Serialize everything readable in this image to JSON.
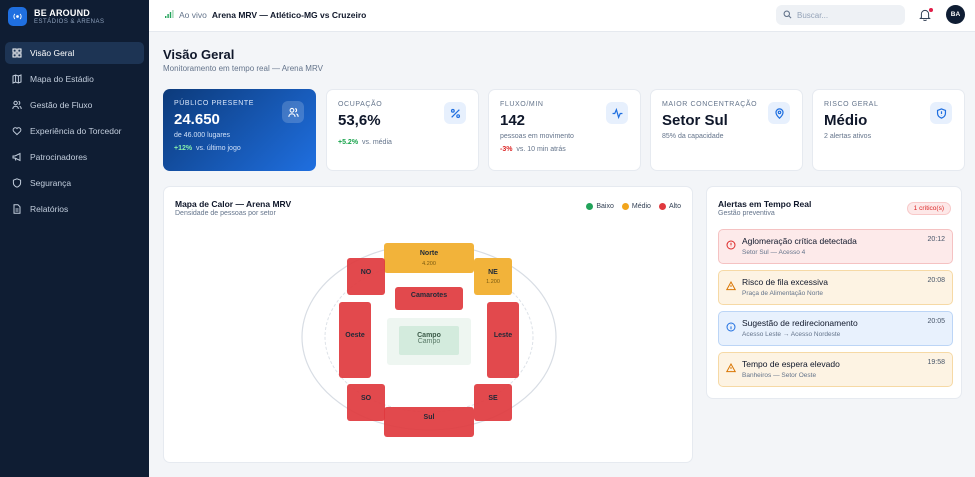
{
  "brand": {
    "name": "BE AROUND",
    "sub": "ESTÁDIOS & ARENAS"
  },
  "sidebar": {
    "items": [
      {
        "label": "Visão Geral",
        "icon": "grid-icon",
        "active": true
      },
      {
        "label": "Mapa do Estádio",
        "icon": "map-icon",
        "active": false
      },
      {
        "label": "Gestão de Fluxo",
        "icon": "users-icon",
        "active": false
      },
      {
        "label": "Experiência do Torcedor",
        "icon": "heart-icon",
        "active": false
      },
      {
        "label": "Patrocinadores",
        "icon": "megaphone-icon",
        "active": false
      },
      {
        "label": "Segurança",
        "icon": "shield-icon",
        "active": false
      },
      {
        "label": "Relatórios",
        "icon": "document-icon",
        "active": false
      }
    ]
  },
  "header": {
    "live_label": "Ao vivo",
    "match": "Arena MRV — Atlético-MG vs Cruzeiro",
    "search_placeholder": "Buscar...",
    "avatar_initials": "BA"
  },
  "page": {
    "title": "Visão Geral",
    "subtitle": "Monitoramento em tempo real — Arena MRV"
  },
  "kpis": [
    {
      "label": "Público presente",
      "value": "24.650",
      "desc": "de 46.000 lugares",
      "trend": "+12%",
      "trend_dir": "up",
      "trend_note": "vs. último jogo",
      "icon": "users-icon"
    },
    {
      "label": "Ocupação",
      "value": "53,6%",
      "desc": "",
      "trend": "+5.2%",
      "trend_dir": "up",
      "trend_note": "vs. média",
      "icon": "percent-icon"
    },
    {
      "label": "Fluxo/min",
      "value": "142",
      "desc": "pessoas em movimento",
      "trend": "-3%",
      "trend_dir": "down",
      "trend_note": "vs. 10 min atrás",
      "icon": "activity-icon"
    },
    {
      "label": "Maior concentração",
      "value": "Setor Sul",
      "desc": "85% da capacidade",
      "trend": "",
      "trend_dir": "",
      "trend_note": "",
      "icon": "map-pin-icon"
    },
    {
      "label": "Risco geral",
      "value": "Médio",
      "desc": "2 alertas ativos",
      "trend": "",
      "trend_dir": "",
      "trend_note": "",
      "icon": "shield-icon"
    }
  ],
  "heatmap": {
    "title": "Mapa de Calor — Arena MRV",
    "subtitle": "Densidade de pessoas por setor",
    "legend": [
      {
        "label": "Baixo",
        "color": "#22a35a"
      },
      {
        "label": "Médio",
        "color": "#f2a51c"
      },
      {
        "label": "Alto",
        "color": "#e0393e"
      }
    ],
    "field_label": "Campo",
    "field_sub": "Campo",
    "sectors": [
      {
        "name": "Norte",
        "value": "4.200",
        "level": "medio"
      },
      {
        "name": "NO",
        "value": "",
        "level": "alto"
      },
      {
        "name": "NE",
        "value": "1.200",
        "level": "medio"
      },
      {
        "name": "Camarotes",
        "value": "",
        "level": "alto"
      },
      {
        "name": "Oeste",
        "value": "",
        "level": "alto"
      },
      {
        "name": "Leste",
        "value": "",
        "level": "alto"
      },
      {
        "name": "SO",
        "value": "",
        "level": "alto"
      },
      {
        "name": "SE",
        "value": "",
        "level": "alto"
      },
      {
        "name": "Sul",
        "value": "",
        "level": "alto"
      }
    ]
  },
  "alerts": {
    "title": "Alertas em Tempo Real",
    "subtitle": "Gestão preventiva",
    "badge": "1 crítico(s)",
    "items": [
      {
        "title": "Aglomeração crítica detectada",
        "sub": "Setor Sul — Acesso 4",
        "time": "20:12",
        "kind": "critical"
      },
      {
        "title": "Risco de fila excessiva",
        "sub": "Praça de Alimentação Norte",
        "time": "20:08",
        "kind": "warning"
      },
      {
        "title": "Sugestão de redirecionamento",
        "sub": "Acesso Leste → Acesso Nordeste",
        "time": "20:05",
        "kind": "info"
      },
      {
        "title": "Tempo de espera elevado",
        "sub": "Banheiros — Setor Oeste",
        "time": "19:58",
        "kind": "warning"
      }
    ]
  }
}
